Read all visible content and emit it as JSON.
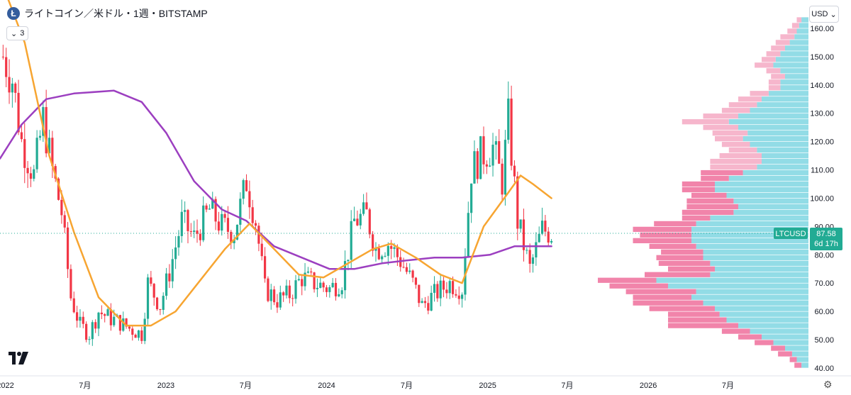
{
  "header": {
    "coin_glyph": "Ł",
    "title": "ライトコイン／米ドル・1週・BITSTAMP",
    "indicator_count": "3",
    "currency": "USD"
  },
  "colors": {
    "up": "#22ab94",
    "down": "#f23645",
    "ma_fast": "#f7a531",
    "ma_slow": "#9c3fc0",
    "vp_up": "#7fd6e2",
    "vp_down": "#ef6f9b",
    "vp_down_light": "#f5a9c3",
    "price_label_bg": "#22ab94"
  },
  "chart_data": {
    "type": "candlestick",
    "symbol": "LTCUSD",
    "last_price": "87.58",
    "countdown": "6d 17h",
    "ylim": [
      40,
      165
    ],
    "yticks": [
      40,
      50,
      60,
      70,
      80,
      90,
      100,
      110,
      120,
      130,
      140,
      150,
      160
    ],
    "ytick_labels": [
      "40.00",
      "50.00",
      "60.00",
      "70.00",
      "80.00",
      "90.00",
      "100.00",
      "110.00",
      "120.00",
      "130.00",
      "140.00",
      "150.00",
      "160.00"
    ],
    "xtick_labels": [
      "2022",
      "7月",
      "2023",
      "7月",
      "2024",
      "7月",
      "2025",
      "7月",
      "2026",
      "7月"
    ],
    "xtick_dates": [
      "2022-01-01",
      "2022-07-01",
      "2023-01-01",
      "2023-07-01",
      "2024-01-01",
      "2024-07-01",
      "2025-01-01",
      "2025-07-01",
      "2026-01-01",
      "2026-07-01"
    ],
    "x_start": "2021-12-20",
    "x_end": "2026-12-31",
    "candles_every": "1週",
    "close_path": [
      [
        "2021-12-27",
        150
      ],
      [
        "2022-01-17",
        142
      ],
      [
        "2022-02-07",
        120
      ],
      [
        "2022-03-07",
        108
      ],
      [
        "2022-03-28",
        128
      ],
      [
        "2022-04-18",
        110
      ],
      [
        "2022-05-09",
        95
      ],
      [
        "2022-05-30",
        65
      ],
      [
        "2022-06-20",
        55
      ],
      [
        "2022-07-11",
        52
      ],
      [
        "2022-08-01",
        60
      ],
      [
        "2022-08-22",
        58
      ],
      [
        "2022-09-19",
        56
      ],
      [
        "2022-10-10",
        54
      ],
      [
        "2022-11-07",
        52
      ],
      [
        "2022-11-21",
        70
      ],
      [
        "2022-12-19",
        62
      ],
      [
        "2023-01-09",
        74
      ],
      [
        "2023-02-06",
        92
      ],
      [
        "2023-03-06",
        86
      ],
      [
        "2023-04-10",
        96
      ],
      [
        "2023-05-08",
        90
      ],
      [
        "2023-06-05",
        88
      ],
      [
        "2023-07-03",
        106
      ],
      [
        "2023-07-24",
        92
      ],
      [
        "2023-08-14",
        68
      ],
      [
        "2023-09-11",
        64
      ],
      [
        "2023-10-09",
        66
      ],
      [
        "2023-11-06",
        72
      ],
      [
        "2023-12-04",
        70
      ],
      [
        "2024-01-08",
        68
      ],
      [
        "2024-02-05",
        71
      ],
      [
        "2024-03-04",
        92
      ],
      [
        "2024-04-01",
        94
      ],
      [
        "2024-04-22",
        82
      ],
      [
        "2024-05-20",
        84
      ],
      [
        "2024-06-17",
        78
      ],
      [
        "2024-07-15",
        70
      ],
      [
        "2024-08-05",
        62
      ],
      [
        "2024-09-02",
        66
      ],
      [
        "2024-10-07",
        70
      ],
      [
        "2024-11-04",
        68
      ],
      [
        "2024-11-25",
        110
      ],
      [
        "2024-12-16",
        115
      ],
      [
        "2025-01-13",
        118
      ],
      [
        "2025-02-03",
        106
      ],
      [
        "2025-02-17",
        128
      ],
      [
        "2025-03-10",
        92
      ],
      [
        "2025-04-07",
        75
      ],
      [
        "2025-05-05",
        89
      ],
      [
        "2025-05-26",
        87.58
      ]
    ],
    "ma_fast": {
      "points": [
        [
          "2021-12-27",
          175
        ],
        [
          "2022-02-14",
          155
        ],
        [
          "2022-04-11",
          115
        ],
        [
          "2022-06-06",
          88
        ],
        [
          "2022-08-01",
          65
        ],
        [
          "2022-10-03",
          55
        ],
        [
          "2022-11-28",
          55
        ],
        [
          "2023-01-23",
          60
        ],
        [
          "2023-03-20",
          71
        ],
        [
          "2023-05-15",
          82
        ],
        [
          "2023-07-10",
          91
        ],
        [
          "2023-09-04",
          82
        ],
        [
          "2023-10-30",
          73
        ],
        [
          "2023-12-25",
          72
        ],
        [
          "2024-02-19",
          77
        ],
        [
          "2024-04-15",
          82
        ],
        [
          "2024-05-27",
          84
        ],
        [
          "2024-07-22",
          79
        ],
        [
          "2024-09-16",
          73
        ],
        [
          "2024-11-04",
          70
        ],
        [
          "2024-12-23",
          90
        ],
        [
          "2025-02-17",
          102
        ],
        [
          "2025-03-17",
          108
        ],
        [
          "2025-04-14",
          105
        ],
        [
          "2025-05-26",
          100
        ]
      ]
    },
    "ma_slow": {
      "points": [
        [
          "2021-12-20",
          114
        ],
        [
          "2022-02-07",
          126
        ],
        [
          "2022-04-04",
          135
        ],
        [
          "2022-06-06",
          137
        ],
        [
          "2022-09-05",
          138
        ],
        [
          "2022-11-07",
          134
        ],
        [
          "2023-01-02",
          123
        ],
        [
          "2023-03-06",
          106
        ],
        [
          "2023-05-08",
          96
        ],
        [
          "2023-07-03",
          92
        ],
        [
          "2023-09-04",
          83
        ],
        [
          "2023-11-06",
          79
        ],
        [
          "2024-01-08",
          75
        ],
        [
          "2024-03-04",
          75
        ],
        [
          "2024-05-06",
          77
        ],
        [
          "2024-07-01",
          78
        ],
        [
          "2024-09-02",
          79
        ],
        [
          "2024-11-04",
          79
        ],
        [
          "2025-01-06",
          80
        ],
        [
          "2025-03-03",
          83
        ],
        [
          "2025-05-26",
          83
        ]
      ]
    },
    "volume_profile": {
      "price_step": 2.2,
      "levels": [
        [
          41,
          0.03,
          0.03
        ],
        [
          43,
          0.05,
          0.03
        ],
        [
          45,
          0.07,
          0.06
        ],
        [
          47,
          0.1,
          0.06
        ],
        [
          49,
          0.15,
          0.08
        ],
        [
          51,
          0.2,
          0.1
        ],
        [
          53,
          0.25,
          0.12
        ],
        [
          55,
          0.3,
          0.3
        ],
        [
          57,
          0.35,
          0.25
        ],
        [
          59,
          0.38,
          0.22
        ],
        [
          61,
          0.4,
          0.28
        ],
        [
          63,
          0.45,
          0.3
        ],
        [
          65,
          0.5,
          0.25
        ],
        [
          67,
          0.48,
          0.3
        ],
        [
          69,
          0.6,
          0.25
        ],
        [
          71,
          0.65,
          0.25
        ],
        [
          73,
          0.42,
          0.28
        ],
        [
          75,
          0.4,
          0.2
        ],
        [
          77,
          0.42,
          0.22
        ],
        [
          79,
          0.45,
          0.2
        ],
        [
          81,
          0.45,
          0.18
        ],
        [
          83,
          0.48,
          0.2
        ],
        [
          85,
          0.5,
          0.25
        ],
        [
          87,
          0.5,
          0.22
        ],
        [
          89,
          0.5,
          0.25
        ],
        [
          91,
          0.48,
          0.18
        ],
        [
          93,
          0.42,
          0.12
        ],
        [
          95,
          0.32,
          0.22
        ],
        [
          97,
          0.3,
          0.22
        ],
        [
          99,
          0.32,
          0.2
        ],
        [
          101,
          0.35,
          0.15
        ],
        [
          103,
          0.4,
          0.14
        ],
        [
          105,
          0.4,
          0.14
        ],
        [
          107,
          0.34,
          0.12
        ],
        [
          109,
          0.28,
          0.18
        ],
        [
          111,
          0.22,
          0.2
        ],
        [
          113,
          0.2,
          0.22
        ],
        [
          115,
          0.2,
          0.18
        ],
        [
          117,
          0.22,
          0.12
        ],
        [
          119,
          0.25,
          0.12
        ],
        [
          121,
          0.28,
          0.12
        ],
        [
          123,
          0.26,
          0.15
        ],
        [
          125,
          0.3,
          0.15
        ],
        [
          127,
          0.34,
          0.2
        ],
        [
          129,
          0.3,
          0.15
        ],
        [
          131,
          0.25,
          0.12
        ],
        [
          133,
          0.22,
          0.12
        ],
        [
          135,
          0.2,
          0.1
        ],
        [
          137,
          0.17,
          0.08
        ],
        [
          139,
          0.12,
          0.05
        ],
        [
          141,
          0.12,
          0.05
        ],
        [
          143,
          0.1,
          0.06
        ],
        [
          145,
          0.12,
          0.06
        ],
        [
          147,
          0.15,
          0.08
        ],
        [
          149,
          0.14,
          0.06
        ],
        [
          151,
          0.12,
          0.06
        ],
        [
          153,
          0.1,
          0.06
        ],
        [
          155,
          0.08,
          0.06
        ],
        [
          157,
          0.06,
          0.06
        ],
        [
          159,
          0.05,
          0.04
        ],
        [
          161,
          0.04,
          0.03
        ],
        [
          163,
          0.03,
          0.02
        ]
      ]
    },
    "grid": false
  }
}
